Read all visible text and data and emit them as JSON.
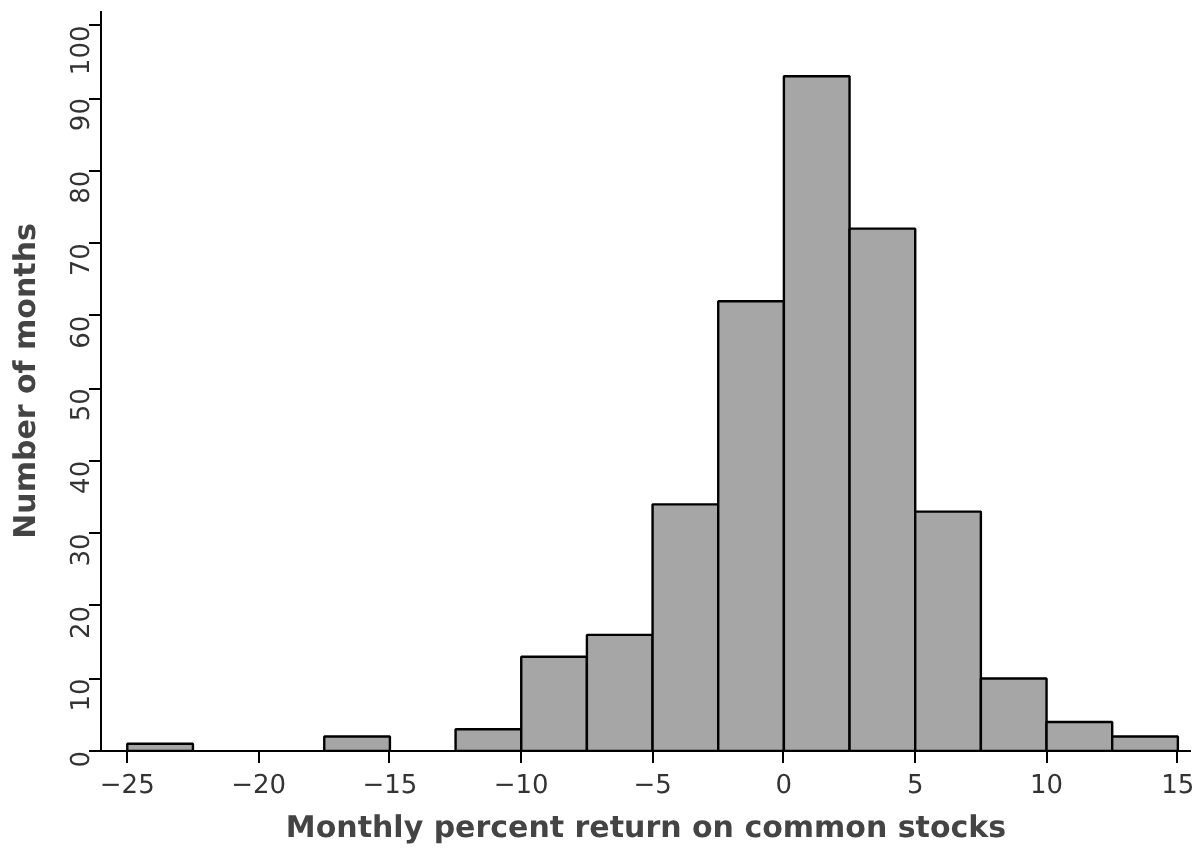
{
  "chart_data": {
    "type": "histogram",
    "xlabel": "Monthly percent return on common stocks",
    "ylabel": "Number of months",
    "bins": [
      -25,
      -22.5,
      -20,
      -17.5,
      -15,
      -12.5,
      -10,
      -7.5,
      -5,
      -2.5,
      0,
      2.5,
      5,
      7.5,
      10,
      12.5,
      15
    ],
    "values": [
      1,
      0,
      0,
      2,
      0,
      3,
      13,
      16,
      34,
      62,
      93,
      72,
      33,
      10,
      4,
      2
    ],
    "color": "#a6a6a6",
    "xlim": [
      -26,
      15.5
    ],
    "xticks": [
      -25,
      -20,
      -15,
      -10,
      -5,
      0,
      5,
      10,
      15
    ],
    "ylim": [
      0,
      102
    ],
    "yticks": [
      0,
      10,
      20,
      30,
      40,
      50,
      60,
      70,
      80,
      90,
      100
    ],
    "grid": false
  }
}
